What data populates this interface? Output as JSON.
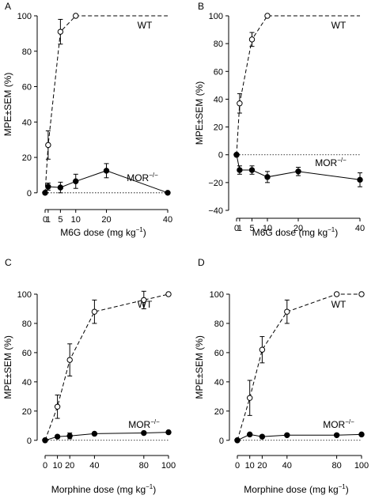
{
  "chart_data": [
    {
      "type": "line",
      "panel_label": "A",
      "xlabel": "M6G dose (mg kg",
      "xlabel_sup": "−1",
      "xlabel_close": ")",
      "ylabel": "MPE±SEM (%)",
      "xlim": [
        0,
        40
      ],
      "ylim": [
        -5,
        100
      ],
      "xticks": [
        0,
        1,
        5,
        10,
        20,
        40
      ],
      "yticks": [
        0,
        20,
        40,
        60,
        80,
        100
      ],
      "series": [
        {
          "name": "WT",
          "marker": "open-circle",
          "linestyle": "dashed",
          "x": [
            0,
            1,
            5,
            10
          ],
          "y": [
            0,
            27,
            91,
            100
          ],
          "err": [
            0,
            8,
            7,
            0
          ]
        },
        {
          "name": "MOR",
          "name_sup": "−/−",
          "marker": "filled-circle",
          "linestyle": "solid",
          "x": [
            0,
            1,
            5,
            10,
            20,
            40
          ],
          "y": [
            0,
            3.5,
            3,
            6.5,
            12.5,
            0
          ],
          "err": [
            0,
            2,
            3,
            4,
            4,
            0
          ]
        }
      ]
    },
    {
      "type": "line",
      "panel_label": "B",
      "xlabel": "M6G dose (mg kg",
      "xlabel_sup": "−1",
      "xlabel_close": ")",
      "ylabel": "MPE±SEM (%)",
      "xlim": [
        0,
        40
      ],
      "ylim": [
        -40,
        100
      ],
      "xticks": [
        0,
        1,
        5,
        10,
        20,
        40
      ],
      "yticks": [
        -40,
        -20,
        0,
        20,
        40,
        60,
        80,
        100
      ],
      "series": [
        {
          "name": "WT",
          "marker": "open-circle",
          "linestyle": "dashed",
          "x": [
            0,
            1,
            5,
            10
          ],
          "y": [
            0,
            37,
            83,
            100
          ],
          "err": [
            0,
            7,
            5,
            0
          ]
        },
        {
          "name": "MOR",
          "name_sup": "−/−",
          "marker": "filled-circle",
          "linestyle": "solid",
          "x": [
            0,
            1,
            5,
            10,
            20,
            40
          ],
          "y": [
            0,
            -11,
            -11,
            -16,
            -12,
            -18
          ],
          "err": [
            0,
            3,
            3,
            4,
            3,
            5
          ]
        }
      ]
    },
    {
      "type": "line",
      "panel_label": "C",
      "xlabel": "Morphine dose (mg kg",
      "xlabel_sup": "−1",
      "xlabel_close": ")",
      "ylabel": "MPE±SEM (%)",
      "xlim": [
        0,
        100
      ],
      "ylim": [
        -5,
        100
      ],
      "xticks": [
        0,
        10,
        20,
        40,
        80,
        100
      ],
      "yticks": [
        0,
        20,
        40,
        60,
        80,
        100
      ],
      "series": [
        {
          "name": "WT",
          "marker": "open-circle",
          "linestyle": "dashed",
          "x": [
            0,
            10,
            20,
            40,
            80,
            100
          ],
          "y": [
            0,
            23,
            55,
            88,
            96,
            100
          ],
          "err": [
            0,
            8,
            11,
            8,
            6,
            0
          ]
        },
        {
          "name": "MOR",
          "name_sup": "−/−",
          "marker": "filled-circle",
          "linestyle": "solid",
          "x": [
            0,
            10,
            20,
            40,
            80,
            100
          ],
          "y": [
            0,
            2.5,
            3,
            4.5,
            5,
            5.5
          ],
          "err": [
            0,
            0,
            2,
            0,
            0,
            0
          ]
        }
      ]
    },
    {
      "type": "line",
      "panel_label": "D",
      "xlabel": "Morphine dose (mg kg",
      "xlabel_sup": "−1",
      "xlabel_close": ")",
      "ylabel": "MPE±SEM (%)",
      "xlim": [
        0,
        100
      ],
      "ylim": [
        -5,
        100
      ],
      "xticks": [
        0,
        10,
        20,
        40,
        80,
        100
      ],
      "yticks": [
        0,
        20,
        40,
        60,
        80,
        100
      ],
      "series": [
        {
          "name": "WT",
          "marker": "open-circle",
          "linestyle": "dashed",
          "x": [
            0,
            10,
            20,
            40,
            80,
            100
          ],
          "y": [
            0,
            29,
            62,
            88,
            100,
            100
          ],
          "err": [
            0,
            12,
            9,
            8,
            0,
            0
          ]
        },
        {
          "name": "MOR",
          "name_sup": "−/−",
          "marker": "filled-circle",
          "linestyle": "solid",
          "x": [
            0,
            10,
            20,
            40,
            80,
            100
          ],
          "y": [
            0,
            4,
            2.5,
            3.5,
            3.5,
            4
          ],
          "err": [
            0,
            0,
            0,
            0,
            0,
            0
          ]
        }
      ]
    }
  ]
}
